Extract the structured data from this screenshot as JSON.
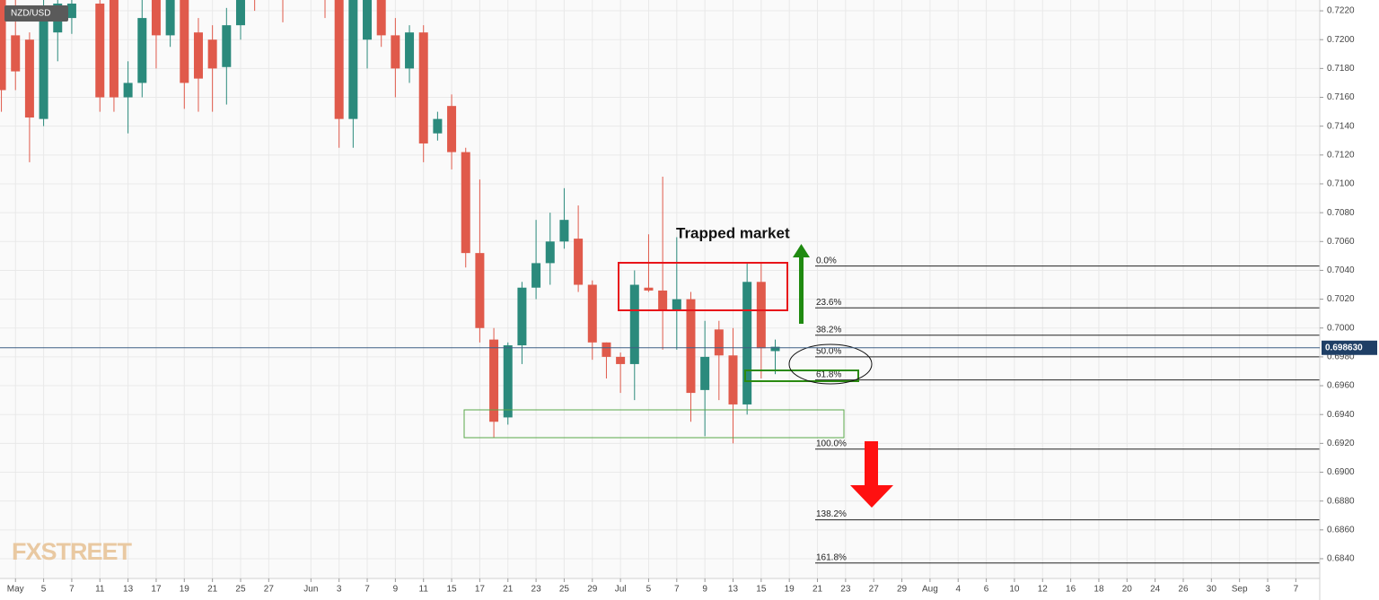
{
  "chart_data": {
    "type": "candlestick",
    "title": "NZD/USD",
    "annotation": "Trapped market",
    "watermark": "FXSTREET",
    "up_color": "#2b8a7c",
    "down_color": "#e05a4b",
    "grid": true,
    "xlim": [
      -1.1,
      92.7
    ],
    "ylim": [
      0.68263,
      0.72275
    ],
    "xticks": [
      {
        "value": 0,
        "label": "May"
      },
      {
        "value": 2,
        "label": "5"
      },
      {
        "value": 4,
        "label": "7"
      },
      {
        "value": 6,
        "label": "11"
      },
      {
        "value": 8,
        "label": "13"
      },
      {
        "value": 10,
        "label": "17"
      },
      {
        "value": 12,
        "label": "19"
      },
      {
        "value": 14,
        "label": "21"
      },
      {
        "value": 16,
        "label": "25"
      },
      {
        "value": 18,
        "label": "27"
      },
      {
        "value": 21,
        "label": "Jun"
      },
      {
        "value": 23,
        "label": "3"
      },
      {
        "value": 25,
        "label": "7"
      },
      {
        "value": 27,
        "label": "9"
      },
      {
        "value": 29,
        "label": "11"
      },
      {
        "value": 31,
        "label": "15"
      },
      {
        "value": 33,
        "label": "17"
      },
      {
        "value": 35,
        "label": "21"
      },
      {
        "value": 37,
        "label": "23"
      },
      {
        "value": 39,
        "label": "25"
      },
      {
        "value": 41,
        "label": "29"
      },
      {
        "value": 43,
        "label": "Jul"
      },
      {
        "value": 45,
        "label": "5"
      },
      {
        "value": 47,
        "label": "7"
      },
      {
        "value": 49,
        "label": "9"
      },
      {
        "value": 51,
        "label": "13"
      },
      {
        "value": 53,
        "label": "15"
      },
      {
        "value": 55,
        "label": "19"
      },
      {
        "value": 57,
        "label": "21"
      },
      {
        "value": 59,
        "label": "23"
      },
      {
        "value": 61,
        "label": "27"
      },
      {
        "value": 63,
        "label": "29"
      },
      {
        "value": 65,
        "label": "Aug"
      },
      {
        "value": 67,
        "label": "4"
      },
      {
        "value": 69,
        "label": "6"
      },
      {
        "value": 71,
        "label": "10"
      },
      {
        "value": 73,
        "label": "12"
      },
      {
        "value": 75,
        "label": "16"
      },
      {
        "value": 77,
        "label": "18"
      },
      {
        "value": 79,
        "label": "20"
      },
      {
        "value": 81,
        "label": "24"
      },
      {
        "value": 83,
        "label": "26"
      },
      {
        "value": 85,
        "label": "30"
      },
      {
        "value": 87,
        "label": "Sep"
      },
      {
        "value": 89,
        "label": "3"
      },
      {
        "value": 91,
        "label": "7"
      }
    ],
    "yticks": [
      {
        "value": 0.684,
        "label": "0.6840"
      },
      {
        "value": 0.686,
        "label": "0.6860"
      },
      {
        "value": 0.688,
        "label": "0.6880"
      },
      {
        "value": 0.69,
        "label": "0.6900"
      },
      {
        "value": 0.692,
        "label": "0.6920"
      },
      {
        "value": 0.694,
        "label": "0.6940"
      },
      {
        "value": 0.696,
        "label": "0.6960"
      },
      {
        "value": 0.698,
        "label": "0.6980"
      },
      {
        "value": 0.7,
        "label": "0.7000"
      },
      {
        "value": 0.702,
        "label": "0.7020"
      },
      {
        "value": 0.704,
        "label": "0.7040"
      },
      {
        "value": 0.706,
        "label": "0.7060"
      },
      {
        "value": 0.708,
        "label": "0.7080"
      },
      {
        "value": 0.71,
        "label": "0.7100"
      },
      {
        "value": 0.712,
        "label": "0.7120"
      },
      {
        "value": 0.714,
        "label": "0.7140"
      },
      {
        "value": 0.716,
        "label": "0.7160"
      },
      {
        "value": 0.718,
        "label": "0.7180"
      },
      {
        "value": 0.72,
        "label": "0.7200"
      },
      {
        "value": 0.722,
        "label": "0.7220"
      }
    ],
    "last_price": {
      "value": 0.69863,
      "label": "0.698630"
    },
    "candles": [
      {
        "x": -1,
        "open": 0.7235,
        "high": 0.724,
        "low": 0.715,
        "close": 0.7165
      },
      {
        "x": 0,
        "open": 0.7203,
        "high": 0.723,
        "low": 0.7165,
        "close": 0.7178
      },
      {
        "x": 1,
        "open": 0.72,
        "high": 0.7205,
        "low": 0.7115,
        "close": 0.7146
      },
      {
        "x": 2,
        "open": 0.7145,
        "high": 0.724,
        "low": 0.714,
        "close": 0.7215
      },
      {
        "x": 3,
        "open": 0.7205,
        "high": 0.724,
        "low": 0.7185,
        "close": 0.7225
      },
      {
        "x": 4,
        "open": 0.7215,
        "high": 0.724,
        "low": 0.7204,
        "close": 0.7225
      },
      {
        "x": 6,
        "open": 0.7225,
        "high": 0.724,
        "low": 0.715,
        "close": 0.716
      },
      {
        "x": 7,
        "open": 0.723,
        "high": 0.724,
        "low": 0.715,
        "close": 0.716
      },
      {
        "x": 8,
        "open": 0.716,
        "high": 0.7185,
        "low": 0.7135,
        "close": 0.717
      },
      {
        "x": 9,
        "open": 0.717,
        "high": 0.724,
        "low": 0.716,
        "close": 0.7215
      },
      {
        "x": 10,
        "open": 0.723,
        "high": 0.724,
        "low": 0.718,
        "close": 0.7203
      },
      {
        "x": 11,
        "open": 0.7203,
        "high": 0.724,
        "low": 0.7195,
        "close": 0.7228
      },
      {
        "x": 12,
        "open": 0.723,
        "high": 0.724,
        "low": 0.7152,
        "close": 0.717
      },
      {
        "x": 13,
        "open": 0.7205,
        "high": 0.7215,
        "low": 0.715,
        "close": 0.7173
      },
      {
        "x": 14,
        "open": 0.72,
        "high": 0.721,
        "low": 0.715,
        "close": 0.718
      },
      {
        "x": 15,
        "open": 0.7181,
        "high": 0.7222,
        "low": 0.7155,
        "close": 0.721
      },
      {
        "x": 16,
        "open": 0.721,
        "high": 0.724,
        "low": 0.72,
        "close": 0.7228
      },
      {
        "x": 17,
        "open": 0.7238,
        "high": 0.7245,
        "low": 0.722,
        "close": 0.7235
      },
      {
        "x": 19,
        "open": 0.724,
        "high": 0.725,
        "low": 0.7212,
        "close": 0.7235
      },
      {
        "x": 22,
        "open": 0.724,
        "high": 0.725,
        "low": 0.7215,
        "close": 0.7238
      },
      {
        "x": 23,
        "open": 0.723,
        "high": 0.724,
        "low": 0.7125,
        "close": 0.7145
      },
      {
        "x": 24,
        "open": 0.7145,
        "high": 0.724,
        "low": 0.7125,
        "close": 0.7232
      },
      {
        "x": 25,
        "open": 0.72,
        "high": 0.724,
        "low": 0.718,
        "close": 0.7228
      },
      {
        "x": 26,
        "open": 0.7232,
        "high": 0.724,
        "low": 0.7195,
        "close": 0.7203
      },
      {
        "x": 27,
        "open": 0.7203,
        "high": 0.7215,
        "low": 0.716,
        "close": 0.718
      },
      {
        "x": 28,
        "open": 0.718,
        "high": 0.721,
        "low": 0.717,
        "close": 0.7205
      },
      {
        "x": 29,
        "open": 0.7205,
        "high": 0.721,
        "low": 0.7115,
        "close": 0.7128
      },
      {
        "x": 30,
        "open": 0.7135,
        "high": 0.715,
        "low": 0.713,
        "close": 0.7145
      },
      {
        "x": 31,
        "open": 0.7154,
        "high": 0.7162,
        "low": 0.711,
        "close": 0.7122
      },
      {
        "x": 32,
        "open": 0.7122,
        "high": 0.7125,
        "low": 0.7042,
        "close": 0.7052
      },
      {
        "x": 33,
        "open": 0.7052,
        "high": 0.7103,
        "low": 0.699,
        "close": 0.7
      },
      {
        "x": 34,
        "open": 0.6992,
        "high": 0.7,
        "low": 0.6924,
        "close": 0.6935
      },
      {
        "x": 35,
        "open": 0.6938,
        "high": 0.699,
        "low": 0.6933,
        "close": 0.6988
      },
      {
        "x": 36,
        "open": 0.6988,
        "high": 0.7032,
        "low": 0.6975,
        "close": 0.7028
      },
      {
        "x": 37,
        "open": 0.7028,
        "high": 0.7075,
        "low": 0.702,
        "close": 0.7045
      },
      {
        "x": 38,
        "open": 0.7045,
        "high": 0.708,
        "low": 0.703,
        "close": 0.706
      },
      {
        "x": 39,
        "open": 0.706,
        "high": 0.7097,
        "low": 0.7055,
        "close": 0.7075
      },
      {
        "x": 40,
        "open": 0.7062,
        "high": 0.7085,
        "low": 0.7025,
        "close": 0.703
      },
      {
        "x": 41,
        "open": 0.703,
        "high": 0.7033,
        "low": 0.6978,
        "close": 0.699
      },
      {
        "x": 42,
        "open": 0.699,
        "high": 0.699,
        "low": 0.6965,
        "close": 0.698
      },
      {
        "x": 43,
        "open": 0.698,
        "high": 0.6983,
        "low": 0.6955,
        "close": 0.6975
      },
      {
        "x": 44,
        "open": 0.6975,
        "high": 0.704,
        "low": 0.695,
        "close": 0.703
      },
      {
        "x": 45,
        "open": 0.7028,
        "high": 0.7065,
        "low": 0.7025,
        "close": 0.7026
      },
      {
        "x": 46,
        "open": 0.7026,
        "high": 0.7105,
        "low": 0.6985,
        "close": 0.7012
      },
      {
        "x": 47,
        "open": 0.7012,
        "high": 0.7063,
        "low": 0.6985,
        "close": 0.702
      },
      {
        "x": 48,
        "open": 0.702,
        "high": 0.7025,
        "low": 0.6935,
        "close": 0.6955
      },
      {
        "x": 49,
        "open": 0.6957,
        "high": 0.7005,
        "low": 0.6925,
        "close": 0.698
      },
      {
        "x": 50,
        "open": 0.6999,
        "high": 0.7005,
        "low": 0.695,
        "close": 0.6981
      },
      {
        "x": 51,
        "open": 0.6981,
        "high": 0.7,
        "low": 0.692,
        "close": 0.6947
      },
      {
        "x": 52,
        "open": 0.6947,
        "high": 0.7045,
        "low": 0.694,
        "close": 0.7032
      },
      {
        "x": 53,
        "open": 0.7032,
        "high": 0.7045,
        "low": 0.6965,
        "close": 0.6986
      },
      {
        "x": 54,
        "open": 0.6984,
        "high": 0.6992,
        "low": 0.6968,
        "close": 0.6987
      }
    ],
    "fib_levels": [
      {
        "label": "0.0%",
        "value": 0.7043
      },
      {
        "label": "23.6%",
        "value": 0.7014
      },
      {
        "label": "38.2%",
        "value": 0.6995
      },
      {
        "label": "50.0%",
        "value": 0.698
      },
      {
        "label": "61.8%",
        "value": 0.6964
      },
      {
        "label": "100.0%",
        "value": 0.6916
      },
      {
        "label": "138.2%",
        "value": 0.6867
      },
      {
        "label": "161.8%",
        "value": 0.6837
      }
    ]
  }
}
